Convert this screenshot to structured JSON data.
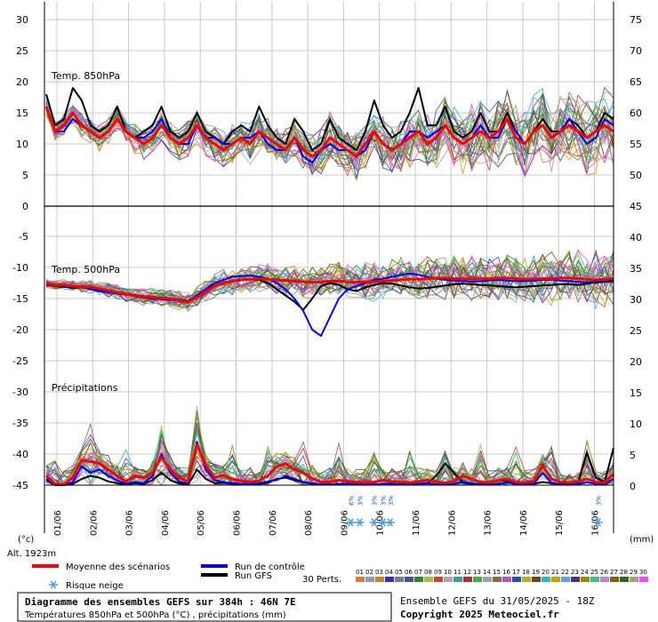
{
  "chart_data": {
    "type": "line",
    "panels": {
      "t850": {
        "label": "Temp. 850hPa",
        "left_ticks": [
          "30",
          "25",
          "20",
          "15",
          "10",
          "5",
          "0"
        ],
        "right_ticks": [
          "75",
          "70",
          "65",
          "60",
          "55",
          "50"
        ],
        "mean": [
          16,
          12,
          13,
          15,
          13,
          12,
          11,
          12,
          14,
          12,
          11,
          10,
          11,
          13,
          11,
          10,
          11,
          13,
          11,
          10,
          9,
          10,
          11,
          10,
          12,
          11,
          10,
          9,
          11,
          9,
          8,
          9,
          11,
          10,
          9,
          8,
          10,
          12,
          10,
          9,
          10,
          11,
          12,
          10,
          11,
          13,
          11,
          10,
          11,
          12,
          11,
          12,
          14,
          11,
          10,
          12,
          13,
          11,
          12,
          13,
          12,
          11,
          12,
          13,
          12
        ],
        "control": [
          16,
          12,
          12,
          14,
          13,
          12,
          11,
          12,
          14,
          12,
          11,
          11,
          12,
          14,
          11,
          10,
          10,
          13,
          11,
          11,
          10,
          10,
          11,
          11,
          12,
          10,
          9,
          9,
          11,
          8,
          7,
          9,
          10,
          9,
          9,
          8,
          9,
          12,
          10,
          9,
          10,
          12,
          12,
          11,
          12,
          13,
          11,
          10,
          11,
          13,
          11,
          11,
          14,
          12,
          10,
          12,
          13,
          11,
          12,
          14,
          12,
          10,
          11,
          14,
          13
        ],
        "gfs": [
          18,
          13,
          14,
          19,
          17,
          13,
          12,
          13,
          16,
          12,
          11,
          12,
          13,
          16,
          12,
          11,
          12,
          15,
          12,
          11,
          10,
          12,
          13,
          12,
          16,
          13,
          11,
          10,
          14,
          12,
          9,
          10,
          14,
          11,
          10,
          9,
          12,
          17,
          13,
          11,
          12,
          15,
          19,
          13,
          13,
          16,
          12,
          11,
          12,
          15,
          12,
          12,
          15,
          12,
          10,
          12,
          14,
          12,
          12,
          14,
          13,
          11,
          12,
          15,
          14
        ]
      },
      "t500": {
        "label": "Temp. 500hPa",
        "left_ticks": [
          "-5",
          "-10",
          "-15",
          "-20",
          "-25",
          "-30",
          "-35",
          "-40",
          "-45"
        ],
        "right_ticks": [
          "45",
          "40",
          "35",
          "30",
          "25",
          "20",
          "15",
          "10",
          "5",
          "0"
        ],
        "mean": [
          -12.6,
          -12.9,
          -12.8,
          -13.0,
          -13.2,
          -13.1,
          -13.4,
          -13.7,
          -14.0,
          -14.3,
          -14.5,
          -14.7,
          -14.8,
          -14.9,
          -15.0,
          -15.3,
          -15.6,
          -14.8,
          -13.9,
          -13.0,
          -12.5,
          -12.2,
          -12.0,
          -11.9,
          -11.8,
          -11.9,
          -12.0,
          -12.1,
          -12.2,
          -12.3,
          -12.4,
          -12.3,
          -12.2,
          -12.2,
          -12.3,
          -12.4,
          -12.3,
          -12.3,
          -12.2,
          -12.1,
          -12.0,
          -11.9,
          -11.9,
          -11.8,
          -11.7,
          -11.7,
          -11.8,
          -11.8,
          -11.9,
          -11.8,
          -11.8,
          -11.7,
          -11.7,
          -11.8,
          -11.9,
          -11.8,
          -11.8,
          -11.8,
          -11.7,
          -11.7,
          -11.8,
          -11.9,
          -12.0,
          -11.9,
          -11.8
        ],
        "control": [
          -12.5,
          -12.8,
          -13.0,
          -13.2,
          -13.0,
          -13.5,
          -13.8,
          -14.0,
          -14.2,
          -14.4,
          -14.6,
          -14.8,
          -15.0,
          -15.1,
          -15.2,
          -15.4,
          -15.5,
          -14.5,
          -13.5,
          -12.5,
          -12.0,
          -11.5,
          -11.4,
          -11.3,
          -11.5,
          -11.8,
          -12.5,
          -13.5,
          -15.0,
          -17.0,
          -20.0,
          -21.0,
          -18.0,
          -15.0,
          -13.5,
          -13.0,
          -12.5,
          -12.0,
          -11.8,
          -11.5,
          -11.2,
          -11.0,
          -11.2,
          -11.5,
          -11.8,
          -12.0,
          -12.1,
          -12.2,
          -12.3,
          -12.2,
          -12.1,
          -12.0,
          -12.1,
          -12.2,
          -12.2,
          -12.1,
          -12.0,
          -12.0,
          -12.1,
          -12.2,
          -12.3,
          -12.4,
          -12.3,
          -12.1,
          -12.0
        ],
        "gfs": [
          -12.8,
          -13.0,
          -13.1,
          -13.3,
          -13.2,
          -13.4,
          -13.6,
          -13.9,
          -14.1,
          -14.3,
          -14.4,
          -14.6,
          -14.7,
          -14.9,
          -15.0,
          -15.2,
          -15.4,
          -14.6,
          -13.7,
          -12.9,
          -12.4,
          -12.2,
          -12.0,
          -11.9,
          -12.0,
          -12.5,
          -13.5,
          -14.5,
          -15.5,
          -16.8,
          -15.0,
          -13.0,
          -12.5,
          -12.8,
          -13.5,
          -13.8,
          -13.2,
          -12.8,
          -12.5,
          -12.6,
          -12.9,
          -13.2,
          -13.4,
          -13.3,
          -13.1,
          -12.9,
          -12.7,
          -12.6,
          -12.7,
          -12.8,
          -12.9,
          -13.0,
          -13.1,
          -13.2,
          -13.1,
          -13.0,
          -12.9,
          -12.8,
          -12.7,
          -12.7,
          -12.8,
          -12.6,
          -12.4,
          -12.3,
          -12.2
        ]
      },
      "precip": {
        "label": "Précipitations",
        "mean": [
          1.5,
          0.2,
          0.1,
          1.2,
          4.0,
          3.8,
          3.5,
          2.5,
          1.5,
          0.6,
          1.5,
          1.2,
          2.0,
          4.5,
          2.5,
          1.2,
          0.6,
          6.5,
          3.2,
          1.2,
          1.6,
          1.0,
          0.7,
          0.5,
          0.7,
          1.5,
          3.0,
          3.5,
          2.5,
          2.0,
          1.1,
          0.5,
          0.5,
          0.8,
          0.6,
          0.5,
          0.4,
          0.5,
          0.8,
          0.6,
          0.5,
          0.4,
          0.6,
          0.8,
          0.5,
          0.4,
          0.6,
          1.5,
          1.0,
          0.5,
          0.4,
          0.8,
          1.0,
          0.5,
          0.4,
          0.6,
          3.2,
          1.0,
          0.5,
          0.4,
          0.6,
          1.0,
          0.5,
          0.4,
          1.8
        ],
        "control": [
          1.0,
          0.0,
          0.0,
          0.5,
          3.0,
          2.0,
          2.5,
          1.5,
          0.8,
          0.2,
          0.5,
          0.3,
          1.5,
          5.0,
          2.0,
          0.6,
          0.2,
          7.0,
          2.5,
          0.8,
          0.5,
          0.3,
          0.2,
          0.2,
          0.3,
          0.6,
          0.8,
          1.5,
          1.0,
          0.5,
          0.3,
          0.1,
          0.1,
          0.2,
          0.2,
          0.1,
          0.1,
          0.1,
          0.2,
          0.2,
          0.1,
          0.1,
          0.2,
          0.3,
          0.1,
          0.1,
          0.2,
          0.5,
          0.3,
          0.1,
          0.1,
          0.2,
          0.4,
          0.2,
          0.1,
          0.2,
          2.0,
          0.4,
          0.1,
          0.1,
          0.2,
          0.5,
          0.2,
          0.1,
          1.0
        ],
        "gfs": [
          0.8,
          0.0,
          0.0,
          0.2,
          1.0,
          1.5,
          1.2,
          0.6,
          0.3,
          0.1,
          0.3,
          0.2,
          0.8,
          2.0,
          0.8,
          0.3,
          0.1,
          2.5,
          1.0,
          0.3,
          0.4,
          0.2,
          0.1,
          0.1,
          0.2,
          0.4,
          1.0,
          1.2,
          0.8,
          0.5,
          0.2,
          0.1,
          0.1,
          0.2,
          0.2,
          0.1,
          0.1,
          0.1,
          0.2,
          0.2,
          0.1,
          0.1,
          0.2,
          0.3,
          1.5,
          3.5,
          2.0,
          0.4,
          0.2,
          0.2,
          0.3,
          0.8,
          0.6,
          0.3,
          0.2,
          0.2,
          0.5,
          0.3,
          0.2,
          0.1,
          0.4,
          5.2,
          1.2,
          0.5,
          6.0
        ]
      }
    },
    "dates": [
      "01/06",
      "02/06",
      "03/06",
      "04/06",
      "05/06",
      "06/06",
      "07/06",
      "08/06",
      "09/06",
      "10/06",
      "11/06",
      "12/06",
      "13/06",
      "14/06",
      "15/06",
      "16/06"
    ],
    "snow_risk": [
      {
        "date_index": 8.2,
        "pct": "6%"
      },
      {
        "date_index": 8.45,
        "pct": "3%"
      },
      {
        "date_index": 8.85,
        "pct": "3%"
      },
      {
        "date_index": 9.1,
        "pct": "3%"
      },
      {
        "date_index": 9.3,
        "pct": "3%"
      },
      {
        "date_index": 15.1,
        "pct": "3%"
      }
    ],
    "member_colors": [
      "#e07a2e",
      "#8aa0b0",
      "#d08020",
      "#3030c0",
      "#708090",
      "#4050a0",
      "#2a8a2a",
      "#a0c040",
      "#cc4040",
      "#c0a0a0",
      "#30a0a0",
      "#b03030",
      "#40b040",
      "#a0a0a0",
      "#8a6a40",
      "#c050c0",
      "#2050c0",
      "#b0b020",
      "#704020",
      "#20c0c0",
      "#d0a000",
      "#60a0e0",
      "#503080",
      "#909000",
      "#40c080",
      "#c080e0",
      "#806000",
      "#207020",
      "#b0a070",
      "#ff40ff"
    ]
  },
  "labels": {
    "unit_left": "(°c)",
    "unit_right": "(mm)",
    "altitude": "Alt. 1923m",
    "legend_mean": "Moyenne des scénarios",
    "legend_control": "Run de contrôle",
    "legend_gfs": "Run GFS",
    "legend_snow": "Risque neige",
    "perts": "30 Perts.",
    "pert_numbers": [
      "01",
      "02",
      "03",
      "04",
      "05",
      "06",
      "07",
      "08",
      "09",
      "10",
      "11",
      "12",
      "13",
      "14",
      "15",
      "16",
      "17",
      "18",
      "19",
      "20",
      "21",
      "22",
      "23",
      "24",
      "25",
      "26",
      "27",
      "28",
      "29",
      "30"
    ]
  },
  "footer": {
    "title": "Diagramme des ensembles GEFS sur 384h : 46N 7E",
    "subtitle": "Températures 850hPa et 500hPa (°C) , précipitations (mm)",
    "ensemble": "Ensemble GEFS du 31/05/2025 - 18Z",
    "copyright": "Copyright 2025 Meteociel.fr"
  },
  "colors": {
    "mean": "#ff0000",
    "control": "#0000ff",
    "gfs": "#000000",
    "grid": "#c8c8c8",
    "snow": "#4aa0e8"
  }
}
